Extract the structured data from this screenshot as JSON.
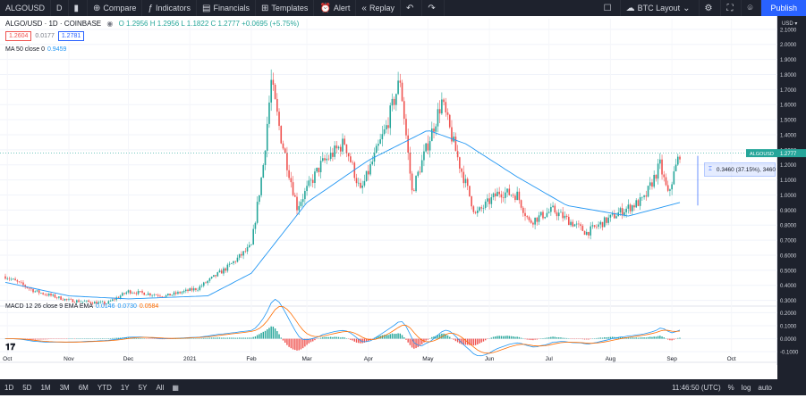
{
  "toolbar": {
    "symbol": "ALGOUSD",
    "interval": "D",
    "compare": "Compare",
    "indicators": "Indicators",
    "financials": "Financials",
    "templates": "Templates",
    "alert": "Alert",
    "replay": "Replay",
    "layout": "BTC Layout",
    "publish": "Publish"
  },
  "legend": {
    "title": "ALGO/USD · 1D · COINBASE",
    "ohlc": "O 1.2956 H 1.2956 L 1.1822 C 1.2777 +0.0695 (+5.75%)"
  },
  "trade": {
    "sell": "1.2604",
    "spread": "0.0177",
    "buy": "1.2781"
  },
  "ma": {
    "label": "MA 50 close 0",
    "value": "0.9459"
  },
  "macd": {
    "label": "MACD 12 26 close 9 EMA EMA",
    "v1": "0.0146",
    "v2": "0.0730",
    "v3": "0.0584"
  },
  "price_axis": {
    "currency": "USD",
    "current_tag": "ALGOUSD",
    "current_price": "1.2777",
    "ticks": [
      "2.1000",
      "2.0000",
      "1.9000",
      "1.8000",
      "1.7000",
      "1.6000",
      "1.5000",
      "1.4000",
      "1.3000",
      "1.2000",
      "1.1000",
      "1.0000",
      "0.9000",
      "0.8000",
      "0.7000",
      "0.6000",
      "0.5000",
      "0.4000",
      "0.3000"
    ],
    "macd_ticks": [
      "0.2000",
      "0.1000",
      "0.0000",
      "-0.1000"
    ]
  },
  "time_axis": [
    "Oct",
    "Nov",
    "Dec",
    "2021",
    "Feb",
    "Mar",
    "Apr",
    "May",
    "Jun",
    "Jul",
    "Aug",
    "Sep",
    "Oct"
  ],
  "measure": "0.3460 (37.15%), 3460",
  "bottombar": {
    "ranges": [
      "1D",
      "5D",
      "1M",
      "3M",
      "6M",
      "YTD",
      "1Y",
      "5Y",
      "All"
    ],
    "time": "11:46:50 (UTC)",
    "pct": "%",
    "log": "log",
    "auto": "auto"
  },
  "colors": {
    "up": "#26a69a",
    "down": "#ef5350",
    "ma": "#2196f3",
    "signal": "#ff6d00",
    "accent": "#2962ff"
  },
  "chart_data": {
    "type": "candlestick",
    "anchors": [
      [
        "2020-09-30",
        0.46
      ],
      [
        "2020-10-15",
        0.36
      ],
      [
        "2020-11-01",
        0.3
      ],
      [
        "2020-11-20",
        0.28
      ],
      [
        "2020-12-01",
        0.36
      ],
      [
        "2020-12-20",
        0.33
      ],
      [
        "2021-01-05",
        0.38
      ],
      [
        "2021-01-20",
        0.52
      ],
      [
        "2021-02-01",
        0.66
      ],
      [
        "2021-02-07",
        1.2
      ],
      [
        "2021-02-11",
        1.75
      ],
      [
        "2021-02-16",
        1.38
      ],
      [
        "2021-02-24",
        0.92
      ],
      [
        "2021-03-08",
        1.2
      ],
      [
        "2021-03-20",
        1.35
      ],
      [
        "2021-03-28",
        1.02
      ],
      [
        "2021-04-10",
        1.45
      ],
      [
        "2021-04-17",
        1.77
      ],
      [
        "2021-04-23",
        1.02
      ],
      [
        "2021-05-08",
        1.62
      ],
      [
        "2021-05-17",
        1.2
      ],
      [
        "2021-05-25",
        0.87
      ],
      [
        "2021-06-06",
        1.02
      ],
      [
        "2021-06-15",
        1.0
      ],
      [
        "2021-06-21",
        0.82
      ],
      [
        "2021-07-03",
        0.9
      ],
      [
        "2021-07-20",
        0.75
      ],
      [
        "2021-08-05",
        0.88
      ],
      [
        "2021-08-18",
        0.97
      ],
      [
        "2021-08-26",
        1.2
      ],
      [
        "2021-08-30",
        1.0
      ],
      [
        "2021-09-05",
        1.28
      ]
    ],
    "ma_anchors": [
      [
        "2020-09-30",
        0.42
      ],
      [
        "2020-11-01",
        0.33
      ],
      [
        "2020-12-01",
        0.31
      ],
      [
        "2021-01-10",
        0.33
      ],
      [
        "2021-02-01",
        0.48
      ],
      [
        "2021-03-01",
        0.95
      ],
      [
        "2021-04-01",
        1.23
      ],
      [
        "2021-05-01",
        1.43
      ],
      [
        "2021-05-20",
        1.34
      ],
      [
        "2021-06-15",
        1.12
      ],
      [
        "2021-07-10",
        0.93
      ],
      [
        "2021-08-10",
        0.86
      ],
      [
        "2021-09-05",
        0.95
      ]
    ],
    "ylim": [
      0.28,
      2.17
    ],
    "macd_ylim": [
      -0.14,
      0.23
    ]
  }
}
